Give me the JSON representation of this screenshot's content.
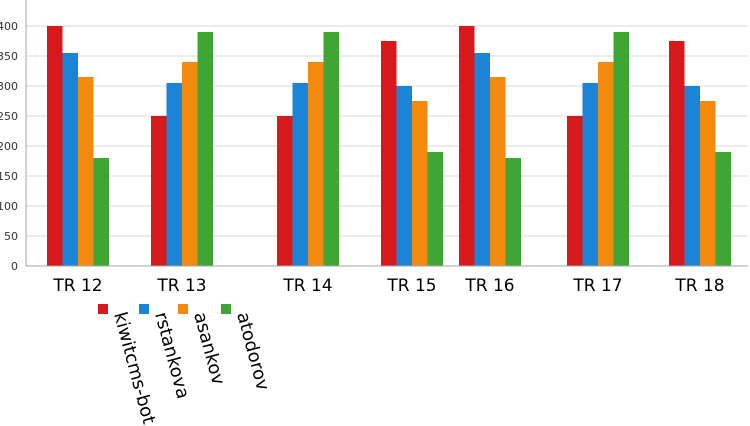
{
  "chart_data": {
    "type": "bar",
    "title": "",
    "xlabel": "",
    "ylabel": "",
    "ylim": [
      0,
      420
    ],
    "yticks": [
      0,
      50,
      100,
      150,
      200,
      250,
      300,
      350,
      400
    ],
    "grid": true,
    "legend_position": "bottom-left, rotated labels",
    "categories": [
      "TR 12",
      "TR 13",
      "TR 14",
      "TR 15",
      "TR 16",
      "TR 17",
      "TR 18"
    ],
    "series": [
      {
        "name": "kiwitcms-bot",
        "color": "#d7191c",
        "values": [
          400,
          250,
          250,
          375,
          400,
          250,
          375
        ]
      },
      {
        "name": "rstankova",
        "color": "#1a84d7",
        "values": [
          355,
          305,
          305,
          300,
          355,
          305,
          300
        ]
      },
      {
        "name": "asankov",
        "color": "#f28a10",
        "values": [
          315,
          340,
          340,
          275,
          315,
          340,
          275
        ]
      },
      {
        "name": "atodorov",
        "color": "#3fa535",
        "values": [
          180,
          390,
          390,
          190,
          180,
          390,
          190
        ]
      }
    ]
  }
}
